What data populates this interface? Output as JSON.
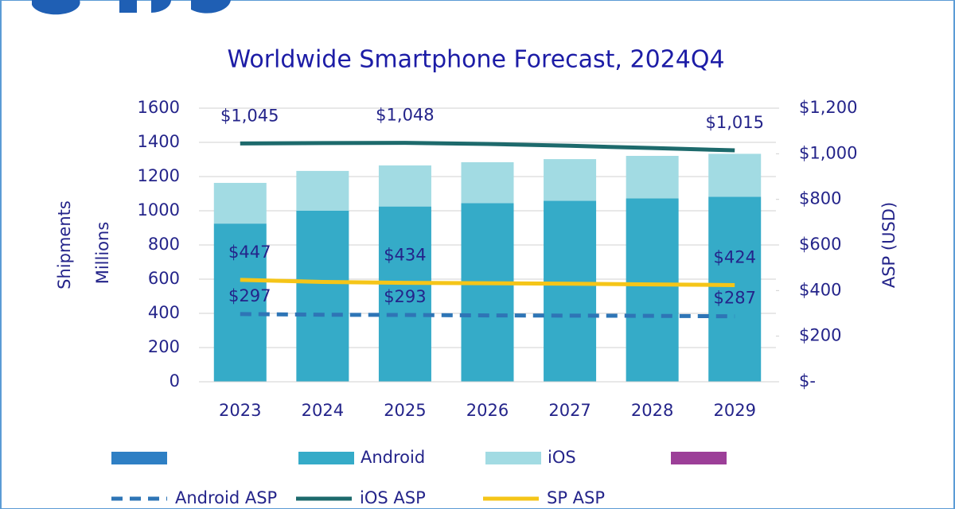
{
  "chart_data": {
    "type": "bar",
    "title": "Worldwide Smartphone Forecast, 2024Q4",
    "ylabel": [
      "Shipments",
      "Millions"
    ],
    "y2label": "ASP (USD)",
    "categories": [
      "2023",
      "2024",
      "2025",
      "2026",
      "2027",
      "2028",
      "2029"
    ],
    "stacked": true,
    "grid": true,
    "ylim": [
      0,
      1600
    ],
    "yticks": [
      0,
      200,
      400,
      600,
      800,
      1000,
      1200,
      1400,
      1600
    ],
    "y2lim": [
      0,
      1200
    ],
    "y2ticks": [
      {
        "value": 0,
        "label": "$-"
      },
      {
        "value": 200,
        "label": "$200"
      },
      {
        "value": 400,
        "label": "$400"
      },
      {
        "value": 600,
        "label": "$600"
      },
      {
        "value": 800,
        "label": "$800"
      },
      {
        "value": 1000,
        "label": "$1,000"
      },
      {
        "value": 1200,
        "label": "$1,200"
      }
    ],
    "series": [
      {
        "name": "Android",
        "type": "bar",
        "color": "#35abc8",
        "values": [
          925,
          1000,
          1025,
          1045,
          1058,
          1072,
          1082
        ]
      },
      {
        "name": "iOS",
        "type": "bar",
        "color": "#a2dbe3",
        "values": [
          238,
          233,
          240,
          239,
          244,
          249,
          251
        ]
      },
      {
        "name": "Android ASP",
        "type": "line",
        "axis": "y2",
        "dashed": true,
        "color": "#2e75b6",
        "values": [
          297,
          294,
          293,
          291,
          290,
          289,
          287
        ],
        "value_labels": [
          "$297",
          null,
          "$293",
          null,
          null,
          null,
          "$287"
        ]
      },
      {
        "name": "iOS ASP",
        "type": "line",
        "axis": "y2",
        "dashed": false,
        "color": "#1d6a6c",
        "values": [
          1045,
          1047,
          1048,
          1043,
          1035,
          1025,
          1015
        ],
        "value_labels": [
          "$1,045",
          null,
          "$1,048",
          null,
          null,
          null,
          "$1,015"
        ]
      },
      {
        "name": "SP ASP",
        "type": "line",
        "axis": "y2",
        "dashed": false,
        "color": "#f5c518",
        "values": [
          447,
          438,
          434,
          432,
          430,
          427,
          424
        ],
        "value_labels": [
          "$447",
          null,
          "$434",
          null,
          null,
          null,
          "$424"
        ]
      }
    ]
  }
}
